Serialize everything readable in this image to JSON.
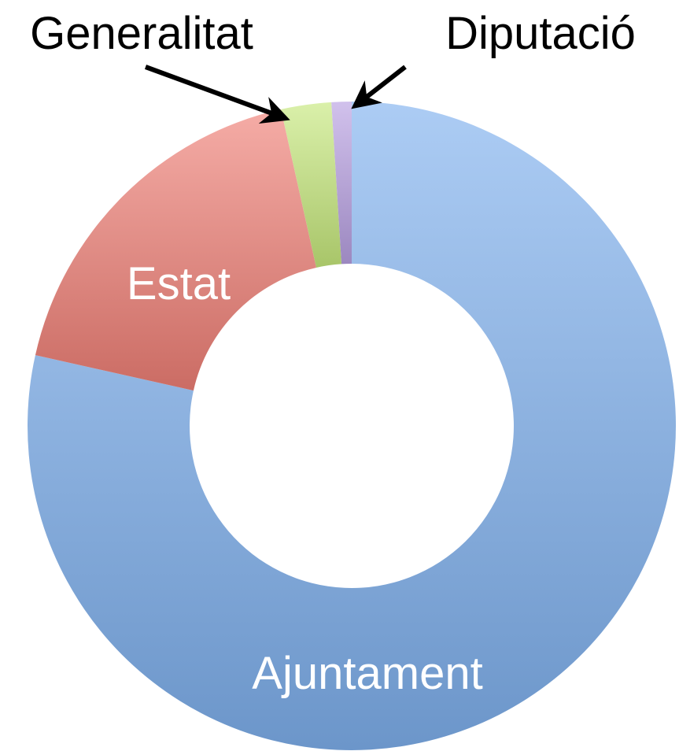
{
  "chart_data": {
    "type": "donut",
    "categories": [
      "Ajuntament",
      "Estat",
      "Generalitat",
      "Diputació"
    ],
    "values": [
      78.5,
      18,
      2.5,
      1
    ],
    "colors": [
      "#7fb0ee",
      "#ef7f76",
      "#c6e87c",
      "#b8a0e2"
    ]
  }
}
